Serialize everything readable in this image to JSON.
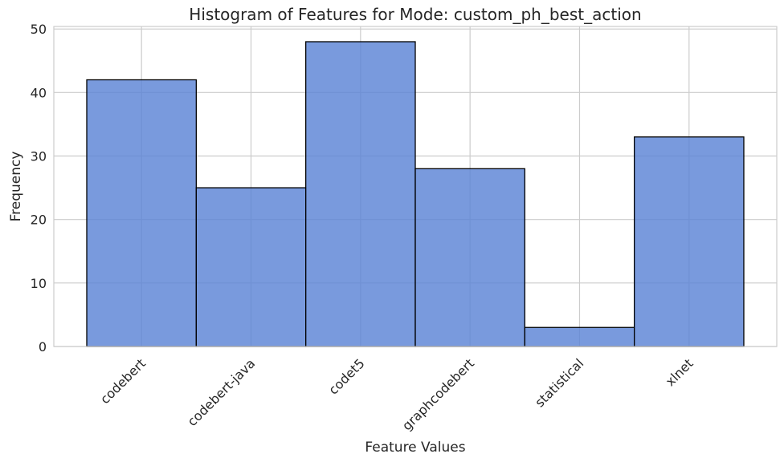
{
  "chart_data": {
    "type": "bar",
    "title": "Histogram of Features for Mode: custom_ph_best_action",
    "xlabel": "Feature Values",
    "ylabel": "Frequency",
    "categories": [
      "codebert",
      "codebert-java",
      "codet5",
      "graphcodebert",
      "statistical",
      "xlnet"
    ],
    "values": [
      42,
      25,
      48,
      28,
      3,
      33
    ],
    "ylim": [
      0,
      50.4
    ],
    "yticks": [
      "0",
      "10",
      "20",
      "30",
      "40",
      "50"
    ],
    "grid": true,
    "legend": "none",
    "colors": {
      "bar_fill": "#5b84d6",
      "bar_edge": "#000000",
      "grid": "#cccccc",
      "axes_frame": "#cccccc",
      "text": "#262626"
    }
  }
}
